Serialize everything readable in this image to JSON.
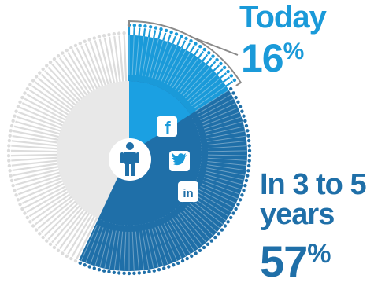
{
  "chart_data": {
    "type": "pie",
    "title": "",
    "series": [
      {
        "label": "Today",
        "value": 16,
        "display": "16"
      },
      {
        "label": "In 3 to 5 years",
        "value": 57,
        "display": "57"
      }
    ],
    "unit": "%",
    "icons": [
      "person-icon",
      "facebook-icon",
      "twitter-icon",
      "linkedin-icon"
    ],
    "colors": {
      "today": "#1a9ad9",
      "future": "#1f6fa8",
      "inner_light": "#1ba0e2",
      "remainder": "#e8e8e8",
      "ticks": "#dcdcdc"
    }
  },
  "labels": {
    "today": "Today",
    "today_value": "16",
    "future_line1": "In 3 to 5",
    "future_line2": "years",
    "future_value": "57",
    "percent_sign": "%"
  }
}
